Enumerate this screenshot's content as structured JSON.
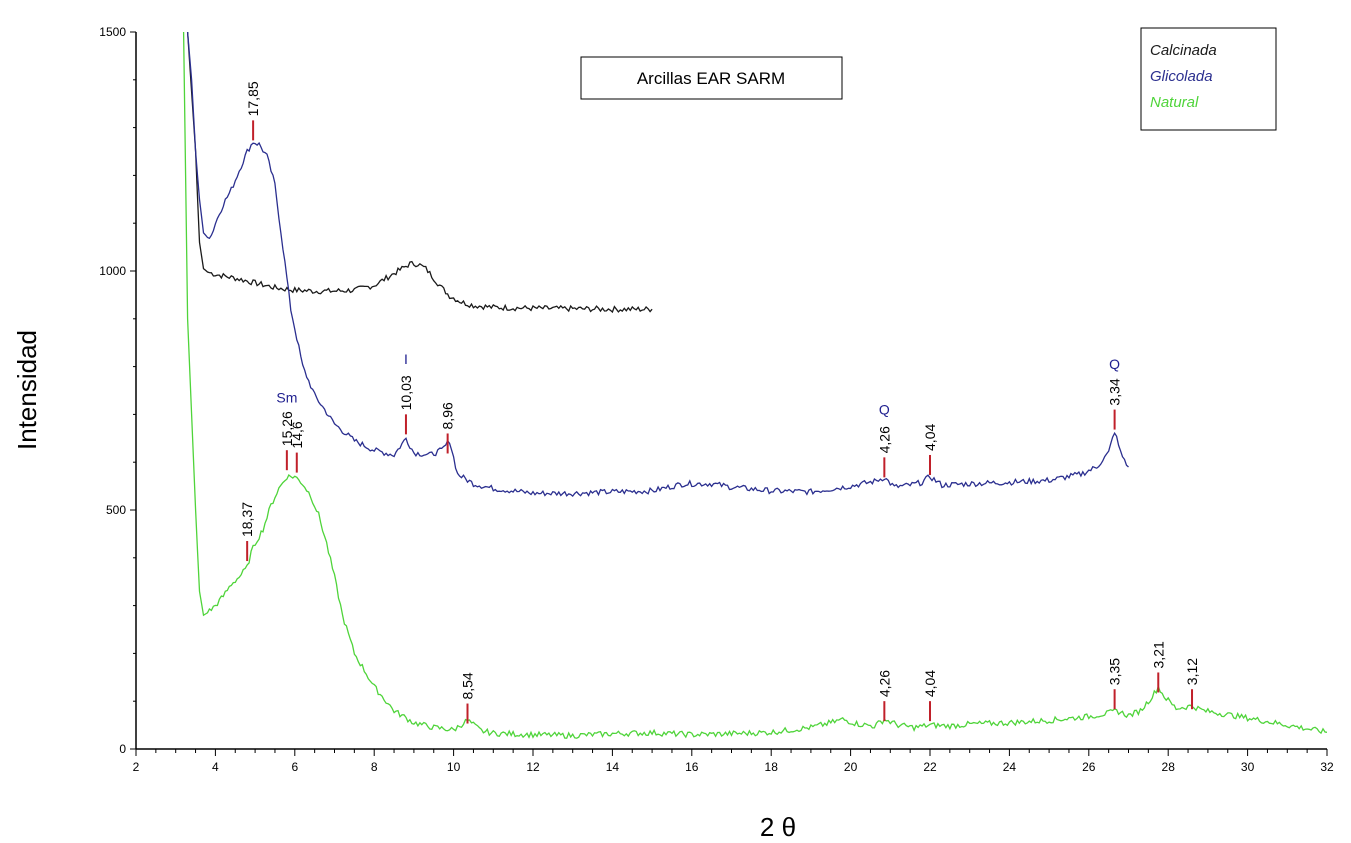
{
  "chart_data": {
    "type": "line",
    "title": "Arcillas EAR SARM",
    "xlabel": "2 θ",
    "ylabel": "Intensidad",
    "xlim": [
      2,
      32
    ],
    "ylim": [
      0,
      1500
    ],
    "x_ticks": [
      "2",
      "4",
      "6",
      "8",
      "10",
      "12",
      "14",
      "16",
      "18",
      "20",
      "22",
      "24",
      "26",
      "28",
      "30",
      "32"
    ],
    "y_ticks": [
      "0",
      "500",
      "1000",
      "1500"
    ],
    "grid": false,
    "legend_position": "top-right",
    "series": [
      {
        "name": "Calcinada",
        "color": "#1a1a1a",
        "x": [
          3.3,
          3.5,
          3.6,
          3.7,
          3.8,
          4.0,
          4.5,
          5.0,
          5.5,
          6.0,
          6.5,
          7.0,
          7.5,
          8.0,
          8.3,
          8.6,
          8.9,
          9.1,
          9.3,
          9.5,
          9.7,
          9.9,
          10.2,
          10.5,
          11.0,
          12.0,
          13.0,
          14.0,
          15.0
        ],
        "y": [
          1500,
          1250,
          1060,
          1005,
          998,
          993,
          985,
          975,
          965,
          960,
          958,
          958,
          960,
          970,
          985,
          1000,
          1015,
          1015,
          1005,
          985,
          965,
          948,
          935,
          928,
          924,
          922,
          921,
          920,
          920
        ]
      },
      {
        "name": "Glicolada",
        "color": "#2b2f8f",
        "x": [
          3.3,
          3.4,
          3.5,
          3.6,
          3.7,
          3.8,
          3.9,
          4.0,
          4.2,
          4.4,
          4.6,
          4.8,
          4.95,
          5.1,
          5.3,
          5.5,
          5.7,
          5.9,
          6.2,
          6.5,
          7.0,
          7.5,
          8.0,
          8.5,
          8.8,
          9.0,
          9.4,
          9.7,
          9.9,
          10.1,
          10.5,
          11.0,
          12.0,
          13.0,
          14.0,
          15.0,
          15.8,
          16.5,
          17.0,
          18.0,
          19.0,
          20.0,
          20.6,
          20.85,
          21.1,
          21.5,
          21.8,
          22.0,
          22.3,
          23.0,
          24.0,
          25.0,
          25.8,
          26.2,
          26.5,
          26.65,
          26.8,
          27.0
        ],
        "y": [
          1500,
          1400,
          1250,
          1150,
          1080,
          1070,
          1075,
          1100,
          1140,
          1170,
          1210,
          1250,
          1270,
          1265,
          1240,
          1180,
          1050,
          920,
          800,
          740,
          680,
          645,
          625,
          615,
          650,
          620,
          615,
          625,
          645,
          575,
          555,
          545,
          535,
          535,
          538,
          540,
          555,
          555,
          548,
          540,
          538,
          550,
          560,
          568,
          548,
          552,
          558,
          570,
          552,
          555,
          558,
          562,
          575,
          590,
          620,
          665,
          620,
          590
        ]
      },
      {
        "name": "Natural",
        "color": "#4fd43a",
        "x": [
          3.2,
          3.25,
          3.3,
          3.4,
          3.5,
          3.6,
          3.7,
          3.8,
          4.0,
          4.2,
          4.4,
          4.6,
          4.8,
          4.9,
          5.0,
          5.2,
          5.4,
          5.6,
          5.8,
          6.0,
          6.2,
          6.4,
          6.6,
          6.8,
          7.0,
          7.2,
          7.5,
          8.0,
          8.5,
          9.0,
          9.5,
          10.0,
          10.35,
          10.7,
          11.0,
          12.0,
          13.0,
          14.0,
          15.0,
          16.0,
          17.0,
          18.0,
          19.0,
          19.5,
          19.8,
          20.2,
          20.6,
          20.85,
          21.2,
          21.6,
          22.0,
          22.5,
          23.0,
          24.0,
          25.0,
          26.0,
          26.5,
          26.7,
          27.0,
          27.3,
          27.6,
          27.75,
          27.9,
          28.2,
          28.6,
          28.9,
          29.5,
          30.0,
          31.0,
          32.0
        ],
        "y": [
          1500,
          1200,
          900,
          700,
          500,
          330,
          280,
          285,
          300,
          320,
          345,
          360,
          380,
          410,
          430,
          460,
          510,
          545,
          570,
          570,
          555,
          530,
          490,
          430,
          360,
          280,
          200,
          130,
          80,
          55,
          45,
          40,
          60,
          38,
          33,
          30,
          28,
          32,
          34,
          30,
          32,
          35,
          45,
          55,
          62,
          52,
          48,
          62,
          50,
          45,
          50,
          48,
          52,
          55,
          60,
          68,
          75,
          80,
          70,
          80,
          110,
          130,
          110,
          85,
          90,
          80,
          72,
          65,
          50,
          35
        ]
      }
    ],
    "peak_labels": [
      {
        "text": "17,85",
        "x": 4.95,
        "y": 1290
      },
      {
        "text": "15,26",
        "x": 5.8,
        "y": 600
      },
      {
        "text": "14,6",
        "x": 6.05,
        "y": 595
      },
      {
        "text": "18,37",
        "x": 4.8,
        "y": 410
      },
      {
        "text": "10,03",
        "x": 8.8,
        "y": 675
      },
      {
        "text": "8,96",
        "x": 9.85,
        "y": 635
      },
      {
        "text": "8,54",
        "x": 10.35,
        "y": 70
      },
      {
        "text": "4,26",
        "x": 20.85,
        "y": 585
      },
      {
        "text": "4,04",
        "x": 22.0,
        "y": 590
      },
      {
        "text": "3,34",
        "x": 26.65,
        "y": 685
      },
      {
        "text": "4,26",
        "x": 20.85,
        "y": 75
      },
      {
        "text": "4,04",
        "x": 22.0,
        "y": 75
      },
      {
        "text": "3,35",
        "x": 26.65,
        "y": 100
      },
      {
        "text": "3,21",
        "x": 27.75,
        "y": 135
      },
      {
        "text": "3,12",
        "x": 28.6,
        "y": 100
      }
    ],
    "mineral_labels": [
      {
        "text": "Sm",
        "x": 5.8,
        "y": 725
      },
      {
        "text": "I",
        "x": 8.8,
        "y": 805
      },
      {
        "text": "Q",
        "x": 20.85,
        "y": 700
      },
      {
        "text": "Q",
        "x": 26.65,
        "y": 795
      }
    ]
  },
  "legend": {
    "items": [
      {
        "label": "Calcinada",
        "color": "#1a1a1a"
      },
      {
        "label": "Glicolada",
        "color": "#2b2f8f"
      },
      {
        "label": "Natural",
        "color": "#4fd43a"
      }
    ]
  },
  "marker_color": "#c0202a"
}
